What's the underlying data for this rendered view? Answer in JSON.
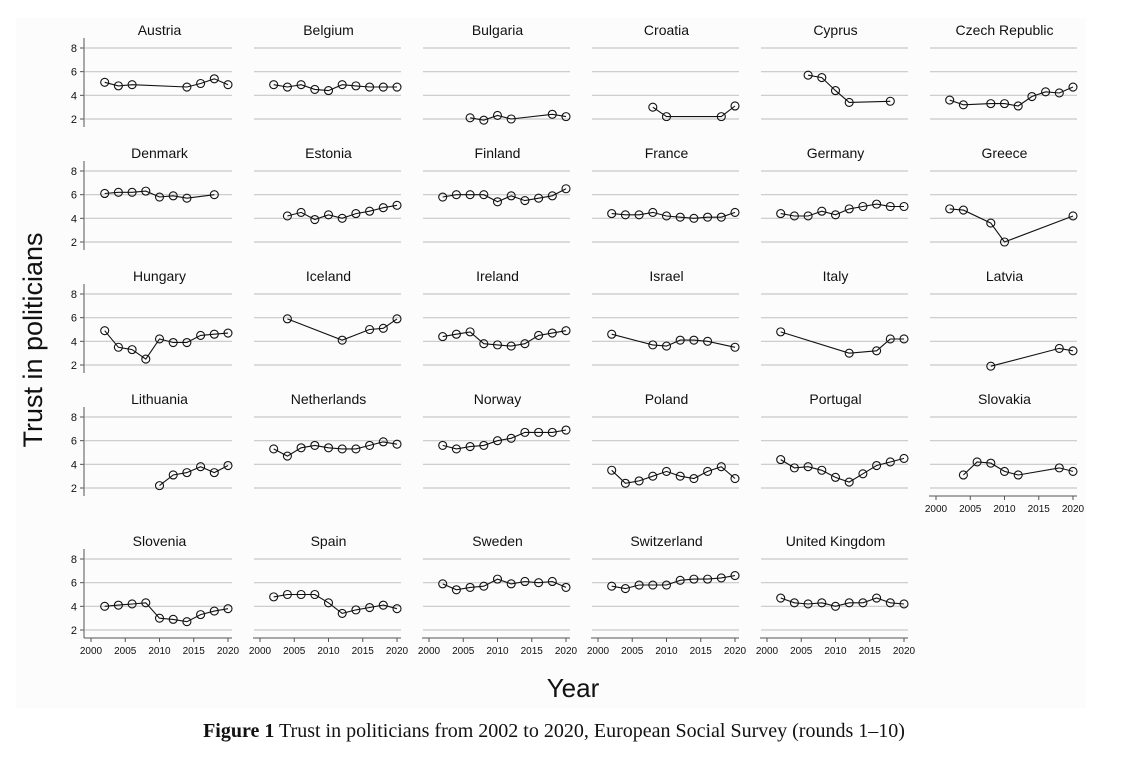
{
  "chart_data": {
    "type": "line",
    "title": "",
    "xlabel": "Year",
    "ylabel": "Trust in politicians",
    "xlim": [
      2000,
      2020
    ],
    "ylim": [
      2,
      8
    ],
    "xticks": [
      "2000",
      "2005",
      "2010",
      "2015",
      "2020"
    ],
    "yticks": [
      "2",
      "4",
      "6",
      "8"
    ],
    "grid": true,
    "legend": "none",
    "panels": [
      {
        "name": "Austria",
        "x": [
          2002,
          2004,
          2006,
          2014,
          2016,
          2018,
          2020
        ],
        "y": [
          5.1,
          4.8,
          4.9,
          4.7,
          5.0,
          5.4,
          4.9
        ]
      },
      {
        "name": "Belgium",
        "x": [
          2002,
          2004,
          2006,
          2008,
          2010,
          2012,
          2014,
          2016,
          2018,
          2020
        ],
        "y": [
          4.9,
          4.7,
          4.9,
          4.5,
          4.4,
          4.9,
          4.8,
          4.7,
          4.7,
          4.7
        ]
      },
      {
        "name": "Bulgaria",
        "x": [
          2006,
          2008,
          2010,
          2012,
          2018,
          2020
        ],
        "y": [
          2.1,
          1.9,
          2.3,
          2.0,
          2.4,
          2.2
        ]
      },
      {
        "name": "Croatia",
        "x": [
          2008,
          2010,
          2018,
          2020
        ],
        "y": [
          3.0,
          2.2,
          2.2,
          3.1
        ]
      },
      {
        "name": "Cyprus",
        "x": [
          2006,
          2008,
          2010,
          2012,
          2018
        ],
        "y": [
          5.7,
          5.5,
          4.4,
          3.4,
          3.5
        ]
      },
      {
        "name": "Czech Republic",
        "x": [
          2002,
          2004,
          2008,
          2010,
          2012,
          2014,
          2016,
          2018,
          2020
        ],
        "y": [
          3.6,
          3.2,
          3.3,
          3.3,
          3.1,
          3.9,
          4.3,
          4.2,
          4.7
        ]
      },
      {
        "name": "Denmark",
        "x": [
          2002,
          2004,
          2006,
          2008,
          2010,
          2012,
          2014,
          2018
        ],
        "y": [
          6.1,
          6.2,
          6.2,
          6.3,
          5.8,
          5.9,
          5.7,
          6.0
        ]
      },
      {
        "name": "Estonia",
        "x": [
          2004,
          2006,
          2008,
          2010,
          2012,
          2014,
          2016,
          2018,
          2020
        ],
        "y": [
          4.2,
          4.5,
          3.9,
          4.3,
          4.0,
          4.4,
          4.6,
          4.9,
          5.1
        ]
      },
      {
        "name": "Finland",
        "x": [
          2002,
          2004,
          2006,
          2008,
          2010,
          2012,
          2014,
          2016,
          2018,
          2020
        ],
        "y": [
          5.8,
          6.0,
          6.0,
          6.0,
          5.4,
          5.9,
          5.5,
          5.7,
          5.9,
          6.5
        ]
      },
      {
        "name": "France",
        "x": [
          2002,
          2004,
          2006,
          2008,
          2010,
          2012,
          2014,
          2016,
          2018,
          2020
        ],
        "y": [
          4.4,
          4.3,
          4.3,
          4.5,
          4.2,
          4.1,
          4.0,
          4.1,
          4.1,
          4.5
        ]
      },
      {
        "name": "Germany",
        "x": [
          2002,
          2004,
          2006,
          2008,
          2010,
          2012,
          2014,
          2016,
          2018,
          2020
        ],
        "y": [
          4.4,
          4.2,
          4.2,
          4.6,
          4.3,
          4.8,
          5.0,
          5.2,
          5.0,
          5.0
        ]
      },
      {
        "name": "Greece",
        "x": [
          2002,
          2004,
          2008,
          2010,
          2020
        ],
        "y": [
          4.8,
          4.7,
          3.6,
          2.0,
          4.2
        ]
      },
      {
        "name": "Hungary",
        "x": [
          2002,
          2004,
          2006,
          2008,
          2010,
          2012,
          2014,
          2016,
          2018,
          2020
        ],
        "y": [
          4.9,
          3.5,
          3.3,
          2.5,
          4.2,
          3.9,
          3.9,
          4.5,
          4.6,
          4.7
        ]
      },
      {
        "name": "Iceland",
        "x": [
          2004,
          2012,
          2016,
          2018,
          2020
        ],
        "y": [
          5.9,
          4.1,
          5.0,
          5.1,
          5.9
        ]
      },
      {
        "name": "Ireland",
        "x": [
          2002,
          2004,
          2006,
          2008,
          2010,
          2012,
          2014,
          2016,
          2018,
          2020
        ],
        "y": [
          4.4,
          4.6,
          4.8,
          3.8,
          3.7,
          3.6,
          3.8,
          4.5,
          4.7,
          4.9
        ]
      },
      {
        "name": "Israel",
        "x": [
          2002,
          2008,
          2010,
          2012,
          2014,
          2016,
          2020
        ],
        "y": [
          4.6,
          3.7,
          3.6,
          4.1,
          4.1,
          4.0,
          3.5
        ]
      },
      {
        "name": "Italy",
        "x": [
          2002,
          2012,
          2016,
          2018,
          2020
        ],
        "y": [
          4.8,
          3.0,
          3.2,
          4.2,
          4.2
        ]
      },
      {
        "name": "Latvia",
        "x": [
          2008,
          2018,
          2020
        ],
        "y": [
          1.9,
          3.4,
          3.2
        ]
      },
      {
        "name": "Lithuania",
        "x": [
          2010,
          2012,
          2014,
          2016,
          2018,
          2020
        ],
        "y": [
          2.2,
          3.1,
          3.3,
          3.8,
          3.3,
          3.9
        ]
      },
      {
        "name": "Netherlands",
        "x": [
          2002,
          2004,
          2006,
          2008,
          2010,
          2012,
          2014,
          2016,
          2018,
          2020
        ],
        "y": [
          5.3,
          4.7,
          5.4,
          5.6,
          5.4,
          5.3,
          5.3,
          5.6,
          5.9,
          5.7
        ]
      },
      {
        "name": "Norway",
        "x": [
          2002,
          2004,
          2006,
          2008,
          2010,
          2012,
          2014,
          2016,
          2018,
          2020
        ],
        "y": [
          5.6,
          5.3,
          5.5,
          5.6,
          6.0,
          6.2,
          6.7,
          6.7,
          6.7,
          6.9
        ]
      },
      {
        "name": "Poland",
        "x": [
          2002,
          2004,
          2006,
          2008,
          2010,
          2012,
          2014,
          2016,
          2018,
          2020
        ],
        "y": [
          3.5,
          2.4,
          2.6,
          3.0,
          3.4,
          3.0,
          2.8,
          3.4,
          3.8,
          2.8
        ]
      },
      {
        "name": "Portugal",
        "x": [
          2002,
          2004,
          2006,
          2008,
          2010,
          2012,
          2014,
          2016,
          2018,
          2020
        ],
        "y": [
          4.4,
          3.7,
          3.8,
          3.5,
          2.9,
          2.5,
          3.2,
          3.9,
          4.2,
          4.5
        ]
      },
      {
        "name": "Slovakia",
        "x": [
          2004,
          2006,
          2008,
          2010,
          2012,
          2018,
          2020
        ],
        "y": [
          3.1,
          4.2,
          4.1,
          3.4,
          3.1,
          3.7,
          3.4
        ]
      },
      {
        "name": "Slovenia",
        "x": [
          2002,
          2004,
          2006,
          2008,
          2010,
          2012,
          2014,
          2016,
          2018,
          2020
        ],
        "y": [
          4.0,
          4.1,
          4.2,
          4.3,
          3.0,
          2.9,
          2.7,
          3.3,
          3.6,
          3.8
        ]
      },
      {
        "name": "Spain",
        "x": [
          2002,
          2004,
          2006,
          2008,
          2010,
          2012,
          2014,
          2016,
          2018,
          2020
        ],
        "y": [
          4.8,
          5.0,
          5.0,
          5.0,
          4.3,
          3.4,
          3.7,
          3.9,
          4.1,
          3.8
        ]
      },
      {
        "name": "Sweden",
        "x": [
          2002,
          2004,
          2006,
          2008,
          2010,
          2012,
          2014,
          2016,
          2018,
          2020
        ],
        "y": [
          5.9,
          5.4,
          5.6,
          5.7,
          6.3,
          5.9,
          6.1,
          6.0,
          6.1,
          5.6
        ]
      },
      {
        "name": "Switzerland",
        "x": [
          2002,
          2004,
          2006,
          2008,
          2010,
          2012,
          2014,
          2016,
          2018,
          2020
        ],
        "y": [
          5.7,
          5.5,
          5.8,
          5.8,
          5.8,
          6.2,
          6.3,
          6.3,
          6.4,
          6.6
        ]
      },
      {
        "name": "United Kingdom",
        "x": [
          2002,
          2004,
          2006,
          2008,
          2010,
          2012,
          2014,
          2016,
          2018,
          2020
        ],
        "y": [
          4.7,
          4.3,
          4.2,
          4.3,
          4.0,
          4.3,
          4.3,
          4.7,
          4.3,
          4.2
        ]
      }
    ]
  },
  "caption": {
    "label": "Figure 1",
    "text": " Trust in politicians from 2002 to 2020, European Social Survey (rounds 1–10)"
  }
}
